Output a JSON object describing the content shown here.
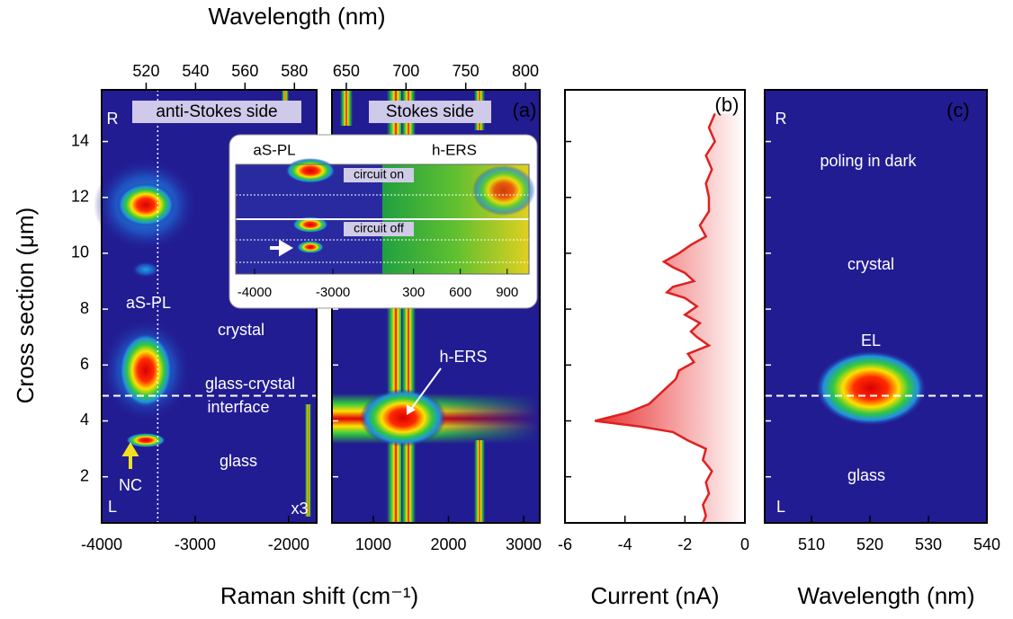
{
  "chart_data": [
    {
      "type": "heatmap",
      "xlabel": "Raman shift (cm⁻¹)",
      "x2label": "Wavelength (nm)",
      "ylabel": "Cross section (μm)",
      "xlim": [
        -4000,
        -1700
      ],
      "xticks": [
        -4000,
        -3000,
        -2000
      ],
      "x2lim": [
        502,
        589
      ],
      "x2ticks": [
        520,
        540,
        560,
        580
      ],
      "ylim": [
        0.35,
        15.85
      ],
      "yticks": [
        2,
        4,
        6,
        8,
        10,
        12,
        14
      ],
      "side_label": "anti-Stokes side",
      "reference_x": -3400,
      "reference_y": 4.9,
      "annotations": [
        "R",
        "L",
        "aS-PL",
        "crystal",
        "glass-crystal",
        "interface",
        "glass",
        "NC",
        "x3"
      ]
    },
    {
      "type": "heatmap",
      "xlim": [
        450,
        3215
      ],
      "xticks": [
        1000,
        2000,
        3000
      ],
      "x2lim": [
        638,
        812
      ],
      "x2ticks": [
        650,
        700,
        750,
        800
      ],
      "ylim": [
        0.35,
        15.85
      ],
      "side_label": "Stokes side",
      "panel_label": "(a)",
      "annotations": [
        "h-ERS"
      ],
      "inset": {
        "titles": [
          "aS-PL",
          "h-ERS"
        ],
        "labels": [
          "circuit on",
          "circuit off"
        ],
        "xlim": [
          -4240,
          -2370
        ],
        "xticks": [
          -4000,
          -3000
        ],
        "x2lim": [
          100,
          1040
        ],
        "x2ticks": [
          300,
          600,
          900
        ]
      }
    },
    {
      "type": "line",
      "panel_label": "(b)",
      "xlabel": "Current (nA)",
      "xlim": [
        -6,
        0
      ],
      "xticks": [
        -6,
        -4,
        -2,
        0
      ],
      "ylim": [
        0.35,
        15.85
      ],
      "color": "#e02020",
      "y": [
        15.0,
        14.5,
        14.0,
        13.5,
        13.0,
        12.5,
        12.0,
        11.5,
        11.0,
        10.6,
        10.3,
        10.0,
        9.7,
        9.5,
        9.3,
        9.0,
        8.8,
        8.6,
        8.4,
        8.1,
        7.8,
        7.5,
        7.2,
        7.0,
        6.7,
        6.4,
        6.1,
        5.8,
        5.5,
        5.2,
        4.9,
        4.6,
        4.3,
        4.0,
        3.8,
        3.6,
        3.3,
        3.0,
        2.6,
        2.2,
        1.8,
        1.4,
        1.0,
        0.6,
        0.35
      ],
      "values": [
        -1.0,
        -1.2,
        -1.0,
        -1.3,
        -1.1,
        -1.3,
        -1.2,
        -1.2,
        -1.5,
        -1.3,
        -1.8,
        -2.2,
        -2.7,
        -2.4,
        -2.0,
        -1.7,
        -2.4,
        -2.6,
        -2.0,
        -1.6,
        -2.0,
        -1.5,
        -1.8,
        -1.6,
        -1.2,
        -1.9,
        -1.7,
        -2.2,
        -2.3,
        -2.6,
        -2.9,
        -3.2,
        -3.9,
        -5.0,
        -3.5,
        -2.4,
        -1.9,
        -1.3,
        -1.4,
        -1.1,
        -1.3,
        -1.2,
        -1.4,
        -1.3,
        -1.4
      ]
    },
    {
      "type": "heatmap",
      "panel_label": "(c)",
      "xlabel": "Wavelength (nm)",
      "xlim": [
        502,
        540
      ],
      "xticks": [
        510,
        520,
        530,
        540
      ],
      "ylim": [
        0.35,
        15.85
      ],
      "reference_y": 4.9,
      "annotations": [
        "R",
        "poling in dark",
        "crystal",
        "EL",
        "glass",
        "L"
      ]
    }
  ]
}
